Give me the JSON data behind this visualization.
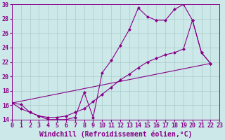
{
  "xlabel": "Windchill (Refroidissement éolien,°C)",
  "bg_color": "#cce8e8",
  "line_color": "#880088",
  "marker": "D",
  "marker_size": 2.5,
  "xlim": [
    0,
    23
  ],
  "ylim": [
    14,
    30
  ],
  "yticks": [
    14,
    16,
    18,
    20,
    22,
    24,
    26,
    28,
    30
  ],
  "xticks": [
    0,
    1,
    2,
    3,
    4,
    5,
    6,
    7,
    8,
    9,
    10,
    11,
    12,
    13,
    14,
    15,
    16,
    17,
    18,
    19,
    20,
    21,
    22,
    23
  ],
  "grid_color": "#aacccc",
  "font_size_tick": 6.0,
  "font_size_xlabel": 7.0,
  "line1_x": [
    0,
    1,
    2,
    3,
    4,
    5,
    6,
    7,
    8,
    9,
    10,
    11,
    12,
    13,
    14,
    15,
    16,
    17,
    18,
    19,
    20,
    21,
    22
  ],
  "line1_y": [
    16.3,
    16.1,
    15.0,
    14.5,
    14.0,
    14.0,
    14.0,
    14.3,
    17.8,
    14.3,
    20.5,
    22.2,
    24.3,
    26.5,
    29.5,
    28.3,
    27.8,
    27.8,
    29.3,
    30.0,
    27.8,
    23.3,
    21.8
  ],
  "line2_x": [
    0,
    1,
    2,
    3,
    4,
    5,
    6,
    7,
    8,
    9,
    10,
    11,
    12,
    13,
    14,
    15,
    16,
    17,
    18,
    19,
    20,
    21,
    22
  ],
  "line2_y": [
    16.3,
    15.5,
    15.0,
    14.5,
    14.3,
    14.3,
    14.5,
    15.0,
    15.5,
    16.5,
    17.5,
    18.5,
    19.5,
    20.3,
    21.2,
    22.0,
    22.5,
    23.0,
    23.3,
    23.8,
    27.8,
    23.3,
    21.8
  ],
  "line3_x": [
    0,
    22
  ],
  "line3_y": [
    16.3,
    21.8
  ]
}
